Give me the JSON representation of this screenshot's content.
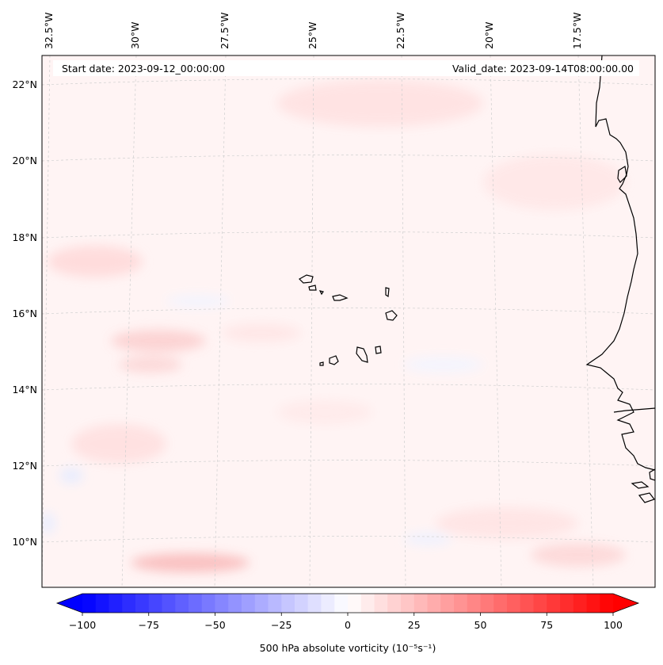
{
  "map": {
    "start_date_label": "Start date: 2023-09-12_00:00:00",
    "valid_date_label": "Valid_date: 2023-09-14T08:00:00.00",
    "lon_labels": [
      "32.5°W",
      "30°W",
      "27.5°W",
      "25°W",
      "22.5°W",
      "20°W",
      "17.5°W"
    ],
    "lat_labels": [
      "22°N",
      "20°N",
      "18°N",
      "16°N",
      "14°N",
      "12°N",
      "10°N"
    ],
    "ocean_tint": "#fff3f3",
    "coastline_color": "#000000",
    "gridline_color": "#c8c8c8"
  },
  "colorbar": {
    "label": "500 hPa absolute vorticity (10⁻⁵s⁻¹)",
    "ticks": [
      "−100",
      "−75",
      "−50",
      "−25",
      "0",
      "25",
      "50",
      "75",
      "100"
    ],
    "min": -100,
    "max": 100,
    "negative_color": "#0000ff",
    "positive_color": "#ff0000",
    "neutral_color": "#ffffff"
  }
}
